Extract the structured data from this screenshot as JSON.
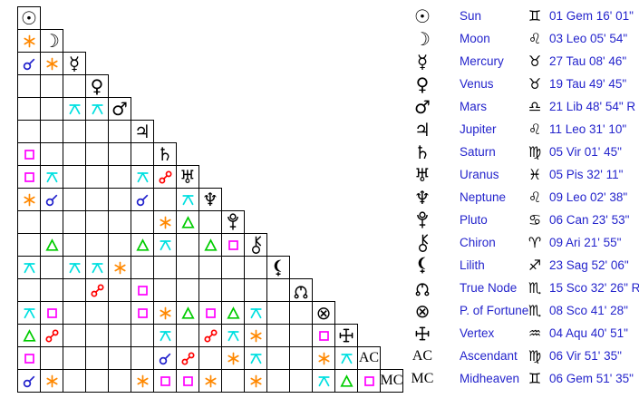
{
  "colors": {
    "cj": "#2222cc",
    "sx": "#ff8800",
    "sq": "#ff00ff",
    "tr": "#00cc00",
    "op": "#ff0000",
    "qx": "#00e0e0",
    "table_text": "#2424cc",
    "glyphs": "#000000",
    "grid_lines": "#000000",
    "background": "#ffffff"
  },
  "aspect_names": {
    "cj": "conjunction",
    "sx": "sextile",
    "sq": "square",
    "tr": "trine",
    "op": "opposition",
    "qx": "quincunx"
  },
  "planets": [
    {
      "id": "sun",
      "name": "Sun",
      "sign": "gemini",
      "position": "01 Gem 16' 01\""
    },
    {
      "id": "moon",
      "name": "Moon",
      "sign": "leo",
      "position": "03 Leo 05' 54\""
    },
    {
      "id": "mercury",
      "name": "Mercury",
      "sign": "taurus",
      "position": "27 Tau 08' 46\""
    },
    {
      "id": "venus",
      "name": "Venus",
      "sign": "taurus",
      "position": "19 Tau 49' 45\""
    },
    {
      "id": "mars",
      "name": "Mars",
      "sign": "libra",
      "position": "21 Lib 48' 54\" R"
    },
    {
      "id": "jupiter",
      "name": "Jupiter",
      "sign": "leo",
      "position": "11 Leo 31' 10\""
    },
    {
      "id": "saturn",
      "name": "Saturn",
      "sign": "virgo",
      "position": "05 Vir 01' 45\""
    },
    {
      "id": "uranus",
      "name": "Uranus",
      "sign": "pisces",
      "position": "05 Pis 32' 11\""
    },
    {
      "id": "neptune",
      "name": "Neptune",
      "sign": "leo",
      "position": "09 Leo 02' 38\""
    },
    {
      "id": "pluto",
      "name": "Pluto",
      "sign": "cancer",
      "position": "06 Can 23' 53\""
    },
    {
      "id": "chiron",
      "name": "Chiron",
      "sign": "aries",
      "position": "09 Ari 21' 55\""
    },
    {
      "id": "lilith",
      "name": "Lilith",
      "sign": "sagittarius",
      "position": "23 Sag 52' 06\""
    },
    {
      "id": "truenode",
      "name": "True Node",
      "sign": "scorpio",
      "position": "15 Sco 32' 26\" R"
    },
    {
      "id": "fortune",
      "name": "P. of Fortune",
      "sign": "scorpio",
      "position": "08 Sco 41' 28\""
    },
    {
      "id": "vertex",
      "name": "Vertex",
      "sign": "aquarius",
      "position": "04 Aqu 40' 51\""
    },
    {
      "id": "ac",
      "name": "Ascendant",
      "short": "AC",
      "sign": "virgo",
      "position": "06 Vir 51' 35\""
    },
    {
      "id": "mc",
      "name": "Midheaven",
      "short": "MC",
      "sign": "gemini",
      "position": "06 Gem 51' 35\""
    }
  ],
  "aspects_matrix": [
    [],
    [
      "sx"
    ],
    [
      "cj",
      "sx"
    ],
    [
      "",
      "",
      ""
    ],
    [
      "",
      "",
      "qx",
      "qx"
    ],
    [
      "",
      "",
      "",
      "",
      ""
    ],
    [
      "sq",
      "",
      "",
      "",
      "",
      ""
    ],
    [
      "sq",
      "qx",
      "",
      "",
      "",
      "qx",
      "op"
    ],
    [
      "sx",
      "cj",
      "",
      "",
      "",
      "cj",
      "",
      "qx"
    ],
    [
      "",
      "",
      "",
      "",
      "",
      "",
      "sx",
      "tr",
      ""
    ],
    [
      "",
      "tr",
      "",
      "",
      "",
      "tr",
      "qx",
      "",
      "tr",
      "sq"
    ],
    [
      "qx",
      "",
      "qx",
      "qx",
      "sx",
      "",
      "",
      "",
      "",
      "",
      ""
    ],
    [
      "",
      "",
      "",
      "op",
      "",
      "sq",
      "",
      "",
      "",
      "",
      "",
      ""
    ],
    [
      "qx",
      "sq",
      "",
      "",
      "",
      "sq",
      "sx",
      "tr",
      "sq",
      "tr",
      "qx",
      "",
      ""
    ],
    [
      "tr",
      "op",
      "",
      "",
      "",
      "",
      "qx",
      "",
      "op",
      "qx",
      "sx",
      "",
      "",
      "sq"
    ],
    [
      "sq",
      "",
      "",
      "",
      "",
      "",
      "cj",
      "op",
      "",
      "sx",
      "qx",
      "",
      "",
      "sx",
      "qx"
    ],
    [
      "cj",
      "sx",
      "",
      "",
      "",
      "sx",
      "sq",
      "sq",
      "sx",
      "",
      "sx",
      "",
      "",
      "qx",
      "tr",
      "sq"
    ]
  ]
}
